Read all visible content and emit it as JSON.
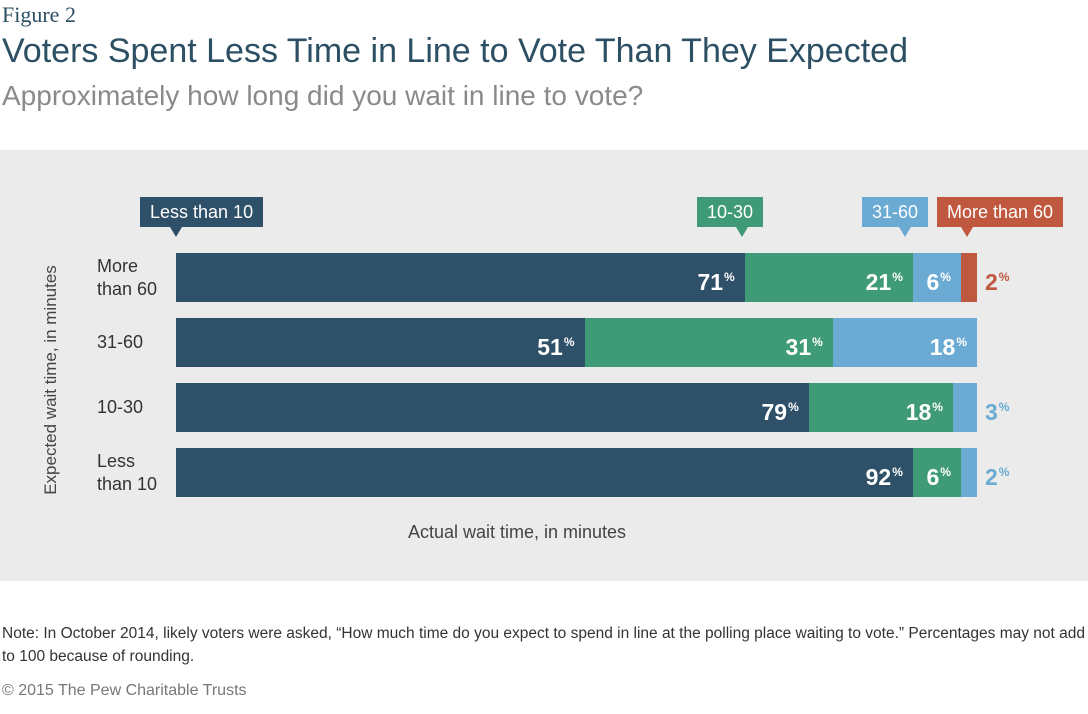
{
  "figure_label": "Figure 2",
  "chart_data": {
    "type": "stacked-bar-horizontal",
    "title": "Voters Spent Less Time in Line to Vote Than They Expected",
    "subtitle": "Approximately how long did you wait in line to vote?",
    "y_label": "Expected wait time, in minutes",
    "x_label": "Actual wait time, in minutes",
    "categories": [
      "More than 60",
      "31-60",
      "10-30",
      "Less than 10"
    ],
    "xlim": [
      0,
      100
    ],
    "series": [
      {
        "name": "Less than 10",
        "color": "#2e5068",
        "values": [
          71,
          51,
          79,
          92
        ],
        "value_labels": [
          "71%",
          "51%",
          "79%",
          "92%"
        ]
      },
      {
        "name": "10-30",
        "color": "#3f9a78",
        "values": [
          21,
          31,
          18,
          6
        ],
        "value_labels": [
          "21%",
          "31%",
          "18%",
          "6%"
        ]
      },
      {
        "name": "31-60",
        "color": "#6aaad3",
        "values": [
          6,
          18,
          3,
          2
        ],
        "value_labels": [
          "6%",
          "18%",
          "3%",
          "2%"
        ]
      },
      {
        "name": "More than 60",
        "color": "#c0573f",
        "values": [
          2,
          null,
          null,
          null
        ],
        "value_labels": [
          "2%",
          null,
          null,
          null
        ]
      }
    ]
  },
  "note": "Note: In October 2014, likely voters were asked, “How much time do you expect to spend in line at the polling place waiting to vote.” Percentages may not add to 100 because of rounding.",
  "copyright": "© 2015 The Pew Charitable Trusts"
}
